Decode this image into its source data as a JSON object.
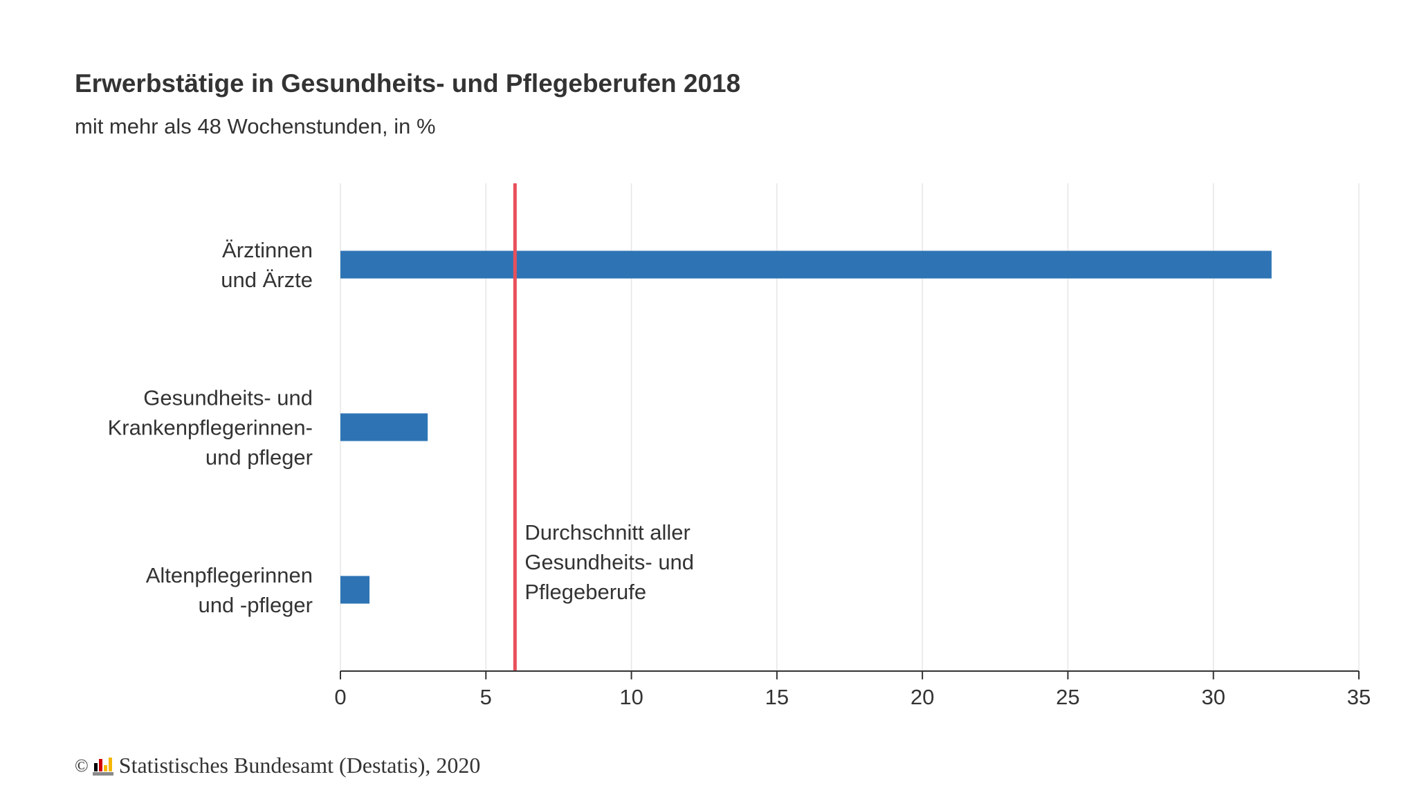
{
  "chart_data": {
    "type": "bar",
    "orientation": "horizontal",
    "title": "Erwerbstätige in Gesundheits- und Pflegeberufen 2018",
    "subtitle": "mit mehr als 48 Wochenstunden, in %",
    "categories": [
      [
        "Ärztinnen",
        "und Ärzte"
      ],
      [
        "Gesundheits- und",
        "Krankenpflegerinnen-",
        "und pfleger"
      ],
      [
        "Altenpflegerinnen",
        "und -pfleger"
      ]
    ],
    "values": [
      32,
      3,
      1
    ],
    "xlim": [
      0,
      35
    ],
    "xticks": [
      0,
      5,
      10,
      15,
      20,
      25,
      30,
      35
    ],
    "grid": true,
    "reference_line": {
      "value": 6,
      "label": [
        "Durchschnitt aller",
        "Gesundheits- und",
        "Pflegeberufe"
      ],
      "color": "#e8505b"
    },
    "bar_color": "#2e74b5"
  },
  "footer": {
    "copyright_symbol": "©",
    "source": "Statistisches Bundesamt (Destatis), 2020"
  }
}
